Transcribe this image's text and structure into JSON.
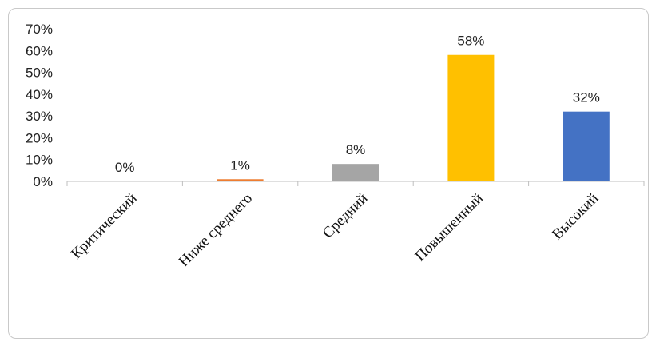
{
  "chart_data": {
    "type": "bar",
    "categories": [
      "Критический",
      "Ниже среднего",
      "Средний",
      "Повышенный",
      "Высокий"
    ],
    "values": [
      0,
      1,
      8,
      58,
      32
    ],
    "data_labels": [
      "0%",
      "1%",
      "8%",
      "58%",
      "32%"
    ],
    "colors": [
      "#5b9bd5",
      "#ed7d31",
      "#a5a5a5",
      "#ffc000",
      "#4472c4"
    ],
    "ylim": [
      0,
      70
    ],
    "yticks": [
      0,
      10,
      20,
      30,
      40,
      50,
      60,
      70
    ],
    "ytick_labels": [
      "0%",
      "10%",
      "20%",
      "30%",
      "40%",
      "50%",
      "60%",
      "70%"
    ],
    "grid": false,
    "legend": false
  }
}
